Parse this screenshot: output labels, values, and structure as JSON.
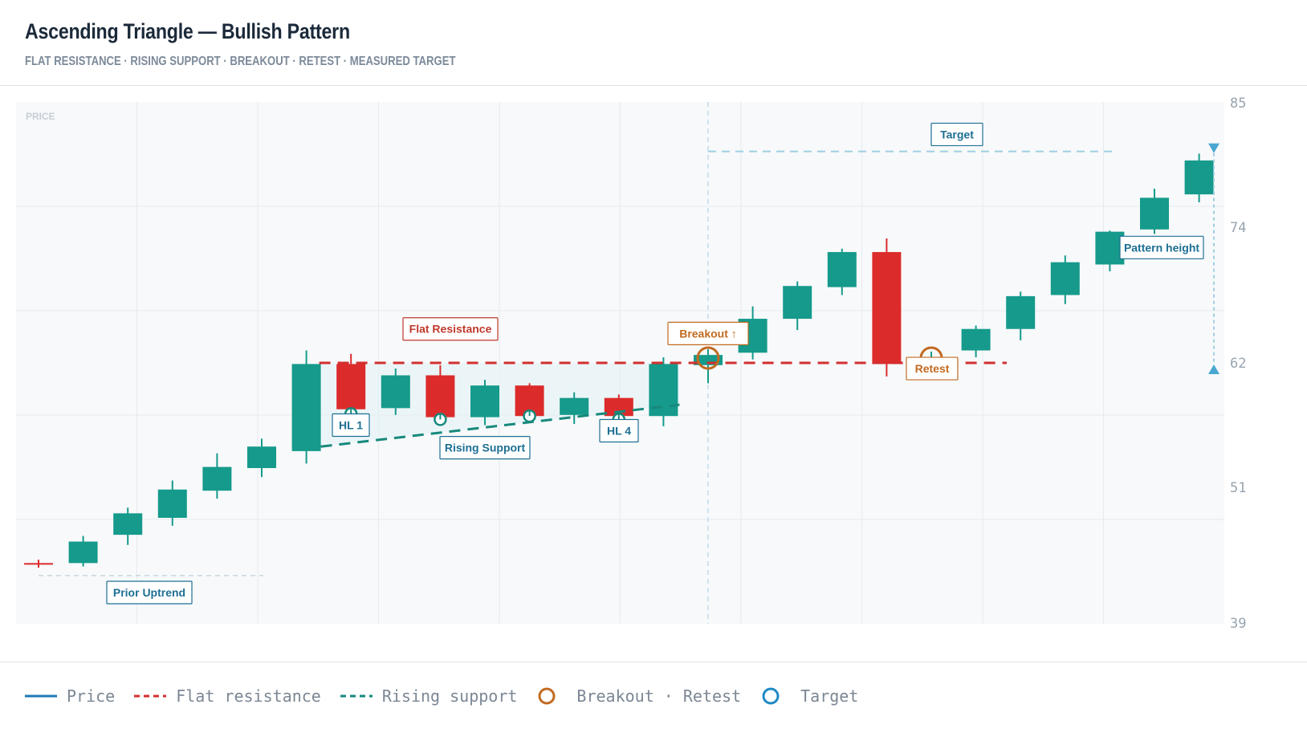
{
  "header": {
    "title": "Ascending Triangle — Bullish Pattern",
    "subtitle": "FLAT RESISTANCE · RISING SUPPORT · BREAKOUT · RETEST · MEASURED TARGET"
  },
  "colors": {
    "bull": "#159a8b",
    "bear": "#dc2b2b",
    "resistance": "#d32f2f",
    "support": "#17897c",
    "breakout": "#c26a21",
    "target": "#3aa0c9",
    "label_blue": "#1e6f93",
    "label_red": "#c0392b"
  },
  "chart_data": {
    "type": "candlestick",
    "ylabel": "PRICE",
    "ylim": [
      39,
      85
    ],
    "yticks": [
      85,
      74,
      62,
      51,
      39
    ],
    "grid": true,
    "candles": [
      {
        "o": 44.3,
        "h": 44.6,
        "l": 43.9,
        "c": 44.2
      },
      {
        "o": 44.3,
        "h": 46.7,
        "l": 44.0,
        "c": 46.2
      },
      {
        "o": 46.8,
        "h": 49.2,
        "l": 45.9,
        "c": 48.7
      },
      {
        "o": 48.3,
        "h": 51.6,
        "l": 47.6,
        "c": 50.8
      },
      {
        "o": 50.7,
        "h": 54.0,
        "l": 50.0,
        "c": 52.8
      },
      {
        "o": 52.7,
        "h": 55.3,
        "l": 51.9,
        "c": 54.6
      },
      {
        "o": 54.2,
        "h": 63.1,
        "l": 53.1,
        "c": 61.9
      },
      {
        "o": 61.9,
        "h": 62.8,
        "l": 57.5,
        "c": 57.9
      },
      {
        "o": 58.0,
        "h": 61.5,
        "l": 57.4,
        "c": 60.9
      },
      {
        "o": 60.9,
        "h": 61.8,
        "l": 57.1,
        "c": 57.2
      },
      {
        "o": 57.2,
        "h": 60.5,
        "l": 56.5,
        "c": 60.0
      },
      {
        "o": 60.0,
        "h": 60.2,
        "l": 56.8,
        "c": 57.3
      },
      {
        "o": 57.4,
        "h": 59.4,
        "l": 56.6,
        "c": 58.9
      },
      {
        "o": 58.9,
        "h": 59.2,
        "l": 57.0,
        "c": 57.3
      },
      {
        "o": 57.3,
        "h": 62.5,
        "l": 56.4,
        "c": 61.9
      },
      {
        "o": 61.8,
        "h": 63.2,
        "l": 60.2,
        "c": 62.7
      },
      {
        "o": 62.9,
        "h": 67.0,
        "l": 62.3,
        "c": 65.9
      },
      {
        "o": 65.9,
        "h": 69.2,
        "l": 64.9,
        "c": 68.8
      },
      {
        "o": 68.7,
        "h": 72.1,
        "l": 68.0,
        "c": 71.8
      },
      {
        "o": 71.8,
        "h": 73.0,
        "l": 60.8,
        "c": 61.9
      },
      {
        "o": 62.0,
        "h": 63.0,
        "l": 61.5,
        "c": 62.4
      },
      {
        "o": 63.1,
        "h": 65.3,
        "l": 62.5,
        "c": 65.0
      },
      {
        "o": 65.0,
        "h": 68.3,
        "l": 64.0,
        "c": 67.9
      },
      {
        "o": 68.0,
        "h": 71.5,
        "l": 67.2,
        "c": 70.9
      },
      {
        "o": 70.7,
        "h": 73.7,
        "l": 70.1,
        "c": 73.6
      },
      {
        "o": 73.8,
        "h": 77.4,
        "l": 73.4,
        "c": 76.6
      },
      {
        "o": 76.9,
        "h": 80.5,
        "l": 76.2,
        "c": 79.9
      }
    ],
    "resistance": 62,
    "target": 80.7,
    "breakout_index": 15,
    "retest_index": 20,
    "higher_lows": [
      {
        "index": 7,
        "value": 57.5
      },
      {
        "index": 9,
        "value": 57.0
      },
      {
        "index": 11,
        "value": 57.3
      },
      {
        "index": 13,
        "value": 57.0
      }
    ],
    "annotations": {
      "flat_resistance": "Flat Resistance",
      "rising_support": "Rising Support",
      "hl1": "HL 1",
      "hl4": "HL 4",
      "breakout": "Breakout ↑",
      "retest": "Retest",
      "target": "Target",
      "pattern_height": "Pattern height",
      "prior_uptrend": "Prior Uptrend"
    }
  },
  "legend": [
    {
      "label": "Price",
      "icon": "solid-line",
      "color": "#1e78b4"
    },
    {
      "label": "Flat resistance",
      "icon": "dashed-line",
      "color": "#d32f2f"
    },
    {
      "label": "Rising support",
      "icon": "dashed-line",
      "color": "#17897c"
    },
    {
      "label": "Breakout · Retest",
      "icon": "ring",
      "color": "#c26a21"
    },
    {
      "label": "Target",
      "icon": "ring",
      "color": "#1e8ac7"
    }
  ]
}
